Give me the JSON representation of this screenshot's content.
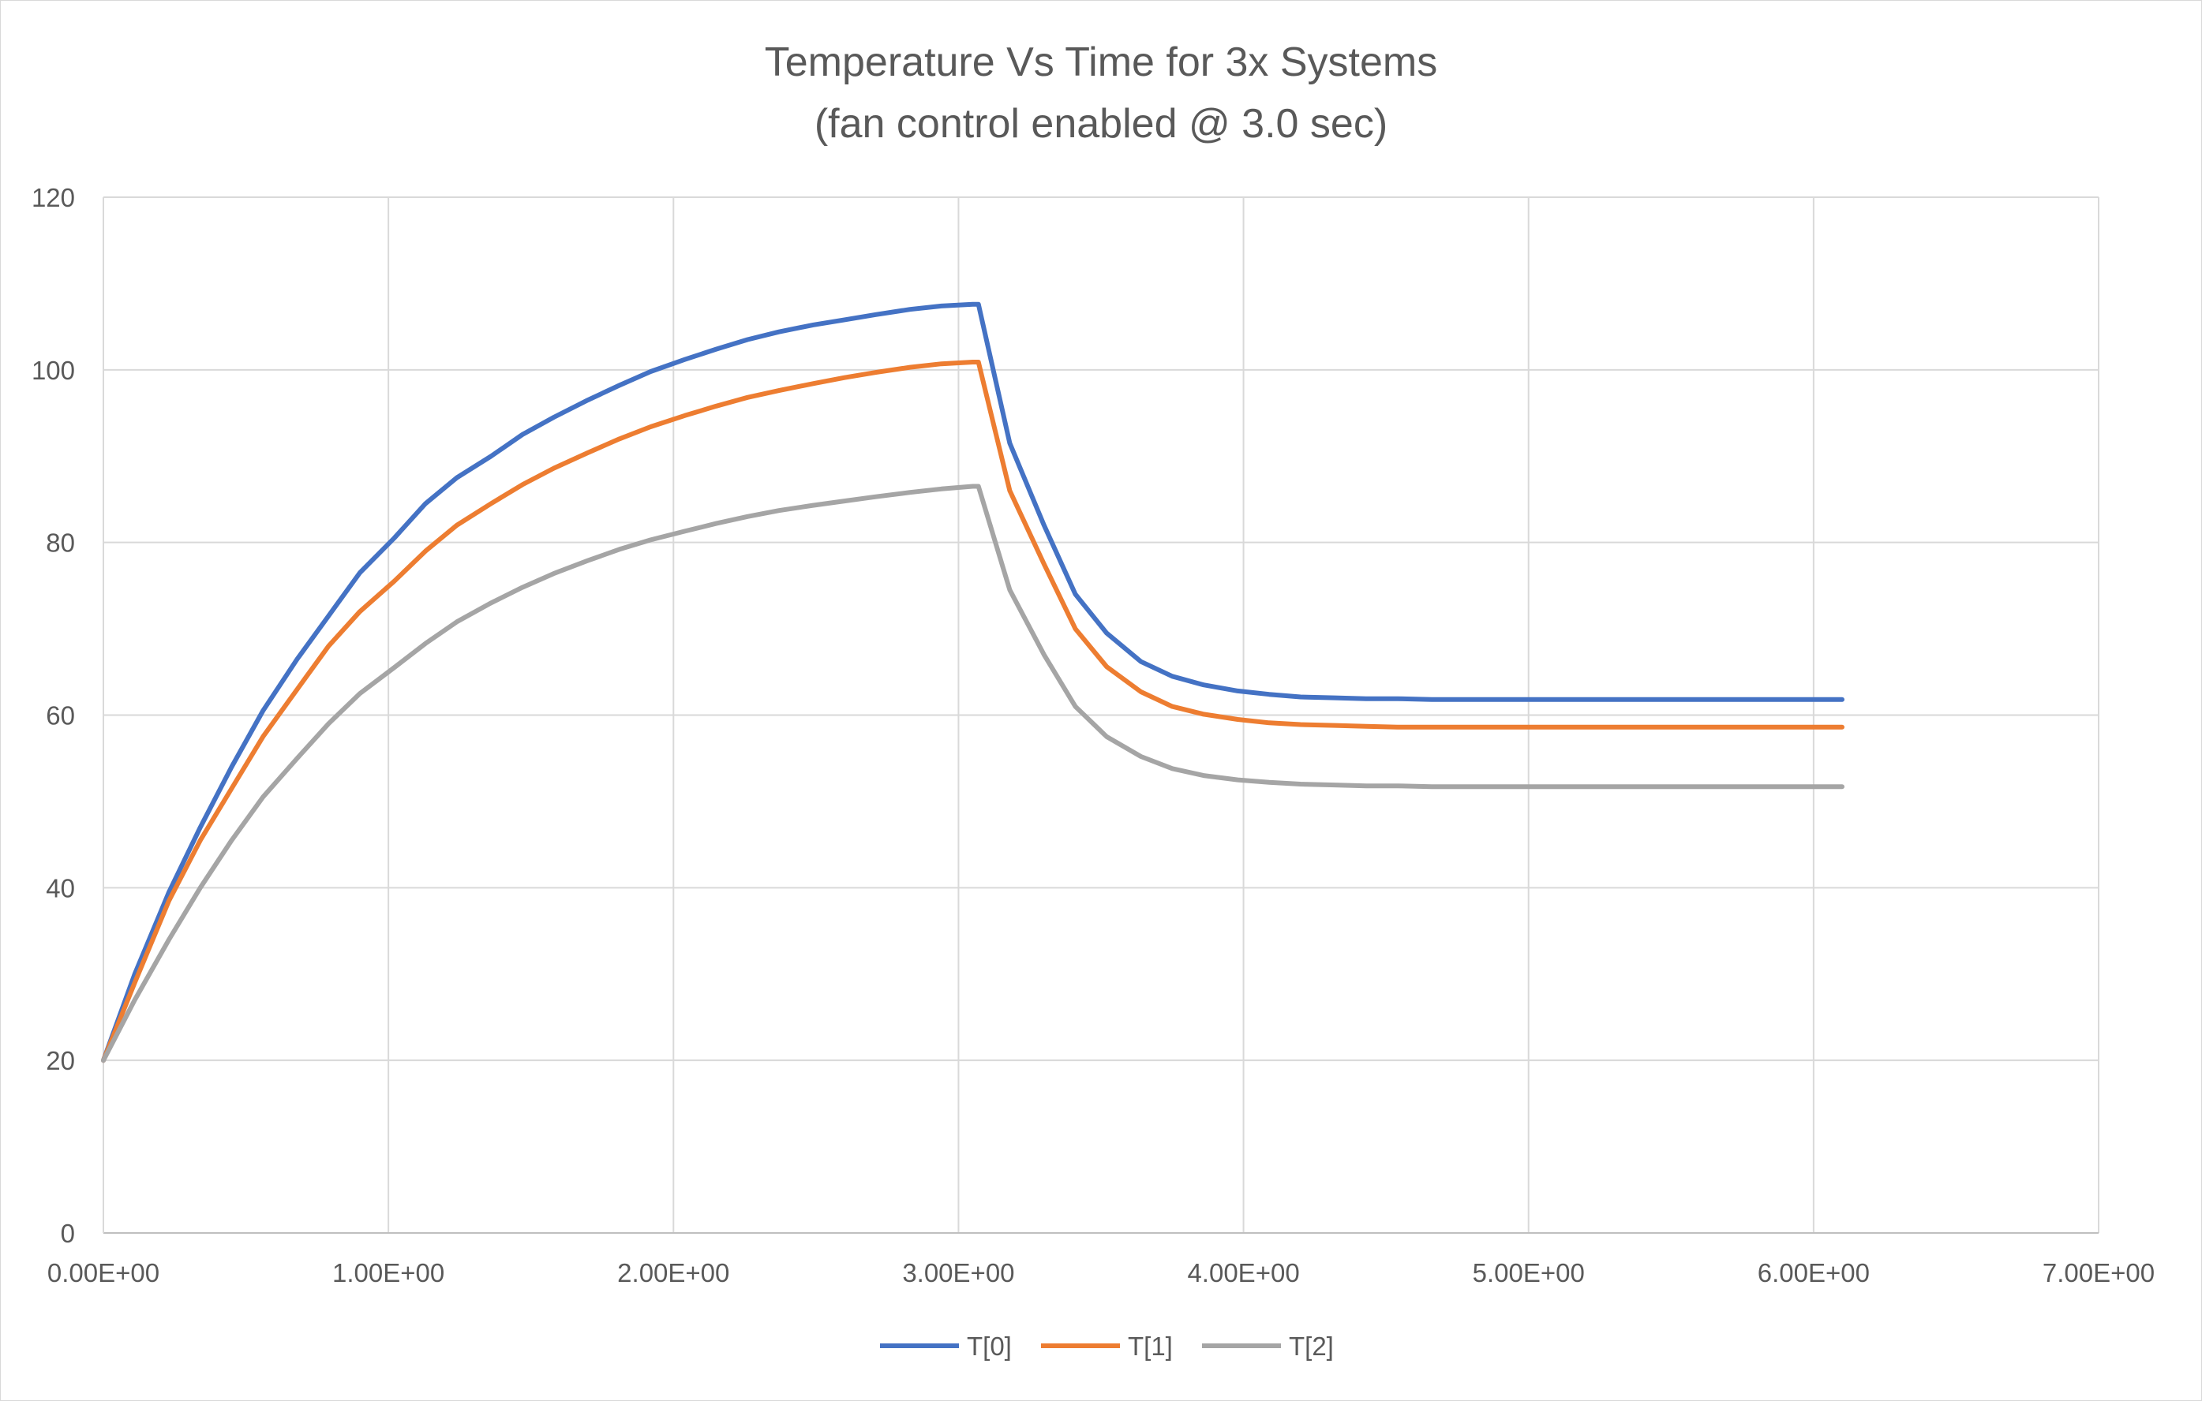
{
  "chart_data": {
    "type": "line",
    "title": "Temperature Vs Time for 3x Systems",
    "subtitle": "(fan control enabled @ 3.0 sec)",
    "xlim": [
      0,
      7
    ],
    "ylim": [
      0,
      120
    ],
    "x_ticks": [
      {
        "value": 0,
        "label": "0.00E+00"
      },
      {
        "value": 1,
        "label": "1.00E+00"
      },
      {
        "value": 2,
        "label": "2.00E+00"
      },
      {
        "value": 3,
        "label": "3.00E+00"
      },
      {
        "value": 4,
        "label": "4.00E+00"
      },
      {
        "value": 5,
        "label": "5.00E+00"
      },
      {
        "value": 6,
        "label": "6.00E+00"
      },
      {
        "value": 7,
        "label": "7.00E+00"
      }
    ],
    "y_ticks": [
      {
        "value": 0,
        "label": "0"
      },
      {
        "value": 20,
        "label": "20"
      },
      {
        "value": 40,
        "label": "40"
      },
      {
        "value": 60,
        "label": "60"
      },
      {
        "value": 80,
        "label": "80"
      },
      {
        "value": 100,
        "label": "100"
      },
      {
        "value": 120,
        "label": "120"
      }
    ],
    "grid": true,
    "legend_position": "bottom",
    "x": [
      0,
      0.11,
      0.23,
      0.34,
      0.45,
      0.56,
      0.68,
      0.79,
      0.9,
      1.02,
      1.13,
      1.24,
      1.36,
      1.47,
      1.58,
      1.7,
      1.81,
      1.92,
      2.04,
      2.15,
      2.26,
      2.37,
      2.49,
      2.6,
      2.71,
      2.83,
      2.94,
      3.05,
      3.07,
      3.18,
      3.3,
      3.41,
      3.52,
      3.64,
      3.75,
      3.86,
      3.98,
      4.09,
      4.2,
      4.32,
      4.43,
      4.54,
      4.66,
      4.77,
      4.88,
      5.0,
      5.11,
      5.22,
      5.34,
      5.45,
      5.56,
      5.68,
      5.79,
      5.9,
      6.01,
      6.1
    ],
    "series": [
      {
        "name": "T[0]",
        "color": "#4472c4",
        "values": [
          20,
          30,
          39.5,
          47,
          54,
          60.5,
          66.5,
          71.5,
          76.5,
          80.5,
          84.5,
          87.5,
          90,
          92.5,
          94.5,
          96.5,
          98.2,
          99.8,
          101.2,
          102.4,
          103.5,
          104.4,
          105.2,
          105.8,
          106.4,
          107,
          107.4,
          107.6,
          107.6,
          91.5,
          82,
          74,
          69.5,
          66.2,
          64.5,
          63.5,
          62.8,
          62.4,
          62.1,
          62,
          61.9,
          61.9,
          61.8,
          61.8,
          61.8,
          61.8,
          61.8,
          61.8,
          61.8,
          61.8,
          61.8,
          61.8,
          61.8,
          61.8,
          61.8,
          61.8
        ]
      },
      {
        "name": "T[1]",
        "color": "#ed7d31",
        "values": [
          20,
          29,
          38.5,
          45.5,
          51.5,
          57.5,
          63,
          68,
          72,
          75.5,
          79,
          82,
          84.5,
          86.7,
          88.6,
          90.4,
          92,
          93.4,
          94.7,
          95.8,
          96.8,
          97.6,
          98.4,
          99.1,
          99.7,
          100.3,
          100.7,
          100.9,
          100.9,
          86,
          77.5,
          70,
          65.6,
          62.7,
          61,
          60.1,
          59.5,
          59.1,
          58.9,
          58.8,
          58.7,
          58.6,
          58.6,
          58.6,
          58.6,
          58.6,
          58.6,
          58.6,
          58.6,
          58.6,
          58.6,
          58.6,
          58.6,
          58.6,
          58.6,
          58.6
        ]
      },
      {
        "name": "T[2]",
        "color": "#a5a5a5",
        "values": [
          20,
          27,
          34,
          40,
          45.5,
          50.5,
          55,
          59,
          62.5,
          65.5,
          68.3,
          70.8,
          73,
          74.8,
          76.4,
          77.9,
          79.2,
          80.3,
          81.3,
          82.2,
          83,
          83.7,
          84.3,
          84.8,
          85.3,
          85.8,
          86.2,
          86.5,
          86.5,
          74.5,
          67,
          61,
          57.5,
          55.2,
          53.8,
          53,
          52.5,
          52.2,
          52,
          51.9,
          51.8,
          51.8,
          51.7,
          51.7,
          51.7,
          51.7,
          51.7,
          51.7,
          51.7,
          51.7,
          51.7,
          51.7,
          51.7,
          51.7,
          51.7,
          51.7
        ]
      }
    ]
  }
}
